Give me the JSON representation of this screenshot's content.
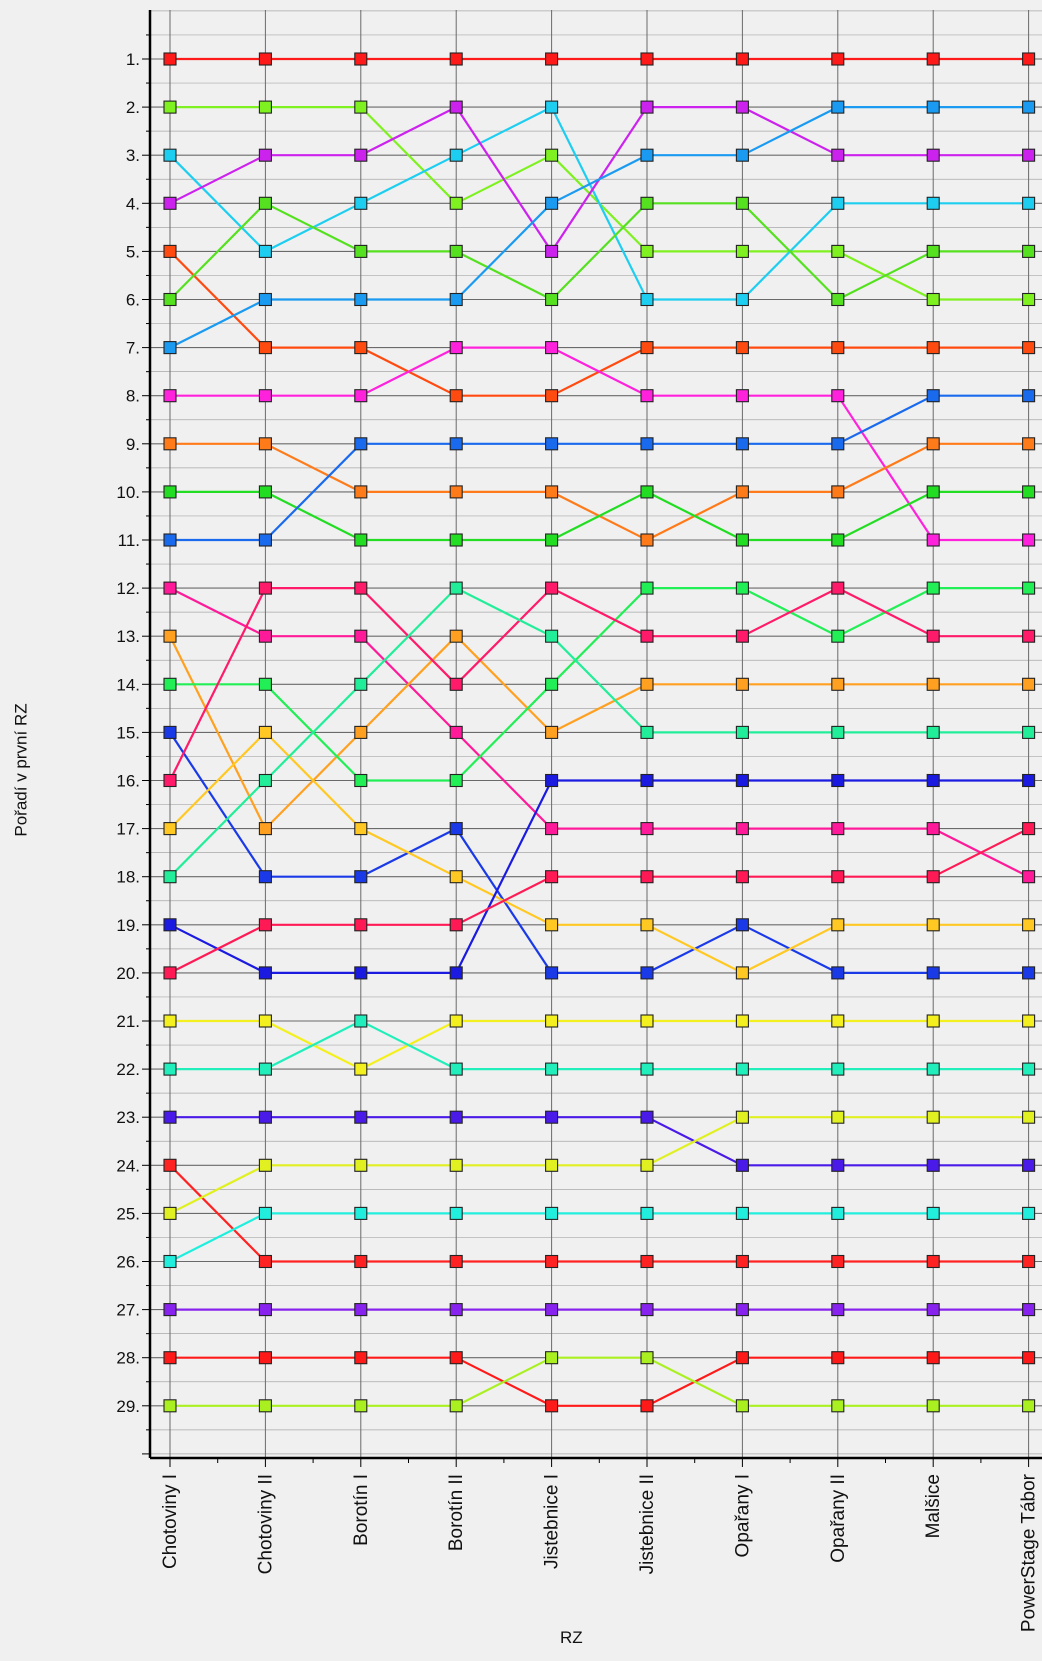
{
  "chart_data": {
    "type": "line",
    "title": "",
    "xlabel": "RZ",
    "ylabel": "Pořadí v první RZ",
    "categories": [
      "Chotoviny I",
      "Chotoviny II",
      "Borotín I",
      "Borotín II",
      "Jistebnice I",
      "Jistebnice II",
      "Opařany I",
      "Opařany II",
      "Malšice",
      "PowerStage Tábor"
    ],
    "y_tick_labels": [
      "1.",
      "2.",
      "3.",
      "4.",
      "5.",
      "6.",
      "7.",
      "8.",
      "9.",
      "10.",
      "11.",
      "12.",
      "13.",
      "14.",
      "15.",
      "16.",
      "17.",
      "18.",
      "19.",
      "20.",
      "21.",
      "22.",
      "23.",
      "24.",
      "25.",
      "26.",
      "27.",
      "28.",
      "29."
    ],
    "ylim": [
      0,
      30
    ],
    "y_inverted": true,
    "grid": true,
    "legend": "none",
    "marker": "square",
    "series": [
      {
        "color": "#ff1a1a",
        "values": [
          1,
          1,
          1,
          1,
          1,
          1,
          1,
          1,
          1,
          1
        ]
      },
      {
        "color": "#7ff020",
        "values": [
          2,
          2,
          2,
          4,
          3,
          5,
          5,
          5,
          6,
          6
        ]
      },
      {
        "color": "#1ecef0",
        "values": [
          3,
          5,
          4,
          3,
          2,
          6,
          6,
          4,
          4,
          4
        ]
      },
      {
        "color": "#cc22ee",
        "values": [
          4,
          3,
          3,
          2,
          5,
          2,
          2,
          3,
          3,
          3
        ]
      },
      {
        "color": "#ff4a10",
        "values": [
          5,
          7,
          7,
          8,
          8,
          7,
          7,
          7,
          7,
          7
        ]
      },
      {
        "color": "#55e020",
        "values": [
          6,
          4,
          5,
          5,
          6,
          4,
          4,
          6,
          5,
          5
        ]
      },
      {
        "color": "#1a9af0",
        "values": [
          7,
          6,
          6,
          6,
          4,
          3,
          3,
          2,
          2,
          2
        ]
      },
      {
        "color": "#ff22dd",
        "values": [
          8,
          8,
          8,
          7,
          7,
          8,
          8,
          8,
          11,
          11
        ]
      },
      {
        "color": "#ff7a18",
        "values": [
          9,
          9,
          10,
          10,
          10,
          11,
          10,
          10,
          9,
          9
        ]
      },
      {
        "color": "#22dd22",
        "values": [
          10,
          10,
          11,
          11,
          11,
          10,
          11,
          11,
          10,
          10
        ]
      },
      {
        "color": "#1a6aee",
        "values": [
          11,
          11,
          9,
          9,
          9,
          9,
          9,
          9,
          8,
          8
        ]
      },
      {
        "color": "#ff1a9a",
        "values": [
          12,
          13,
          13,
          15,
          17,
          17,
          17,
          17,
          17,
          18
        ]
      },
      {
        "color": "#ffa020",
        "values": [
          13,
          17,
          15,
          13,
          15,
          14,
          14,
          14,
          14,
          14
        ]
      },
      {
        "color": "#22ee55",
        "values": [
          14,
          14,
          16,
          16,
          14,
          12,
          12,
          13,
          12,
          12
        ]
      },
      {
        "color": "#1a3ae8",
        "values": [
          15,
          18,
          18,
          17,
          20,
          20,
          19,
          20,
          20,
          20
        ]
      },
      {
        "color": "#ff1a6a",
        "values": [
          16,
          12,
          12,
          14,
          12,
          13,
          13,
          12,
          13,
          13
        ]
      },
      {
        "color": "#ffc822",
        "values": [
          17,
          15,
          17,
          18,
          19,
          19,
          20,
          19,
          19,
          19
        ]
      },
      {
        "color": "#22ee99",
        "values": [
          18,
          16,
          14,
          12,
          13,
          15,
          15,
          15,
          15,
          15
        ]
      },
      {
        "color": "#1a1ae0",
        "values": [
          19,
          20,
          20,
          20,
          16,
          16,
          16,
          16,
          16,
          16
        ]
      },
      {
        "color": "#ff1a55",
        "values": [
          20,
          19,
          19,
          19,
          18,
          18,
          18,
          18,
          18,
          17
        ]
      },
      {
        "color": "#f4f020",
        "values": [
          21,
          21,
          22,
          21,
          21,
          21,
          21,
          21,
          21,
          21
        ]
      },
      {
        "color": "#22eebb",
        "values": [
          22,
          22,
          21,
          22,
          22,
          22,
          22,
          22,
          22,
          22
        ]
      },
      {
        "color": "#4a1ae8",
        "values": [
          23,
          23,
          23,
          23,
          23,
          23,
          24,
          24,
          24,
          24
        ]
      },
      {
        "color": "#ff2222",
        "values": [
          24,
          26,
          26,
          26,
          26,
          26,
          26,
          26,
          26,
          26
        ]
      },
      {
        "color": "#e0f020",
        "values": [
          25,
          24,
          24,
          24,
          24,
          24,
          23,
          23,
          23,
          23
        ]
      },
      {
        "color": "#22eedd",
        "values": [
          26,
          25,
          25,
          25,
          25,
          25,
          25,
          25,
          25,
          25
        ]
      },
      {
        "color": "#8822ee",
        "values": [
          27,
          27,
          27,
          27,
          27,
          27,
          27,
          27,
          27,
          27
        ]
      },
      {
        "color": "#ff1a1a",
        "values": [
          28,
          28,
          28,
          28,
          29,
          29,
          28,
          28,
          28,
          28
        ]
      },
      {
        "color": "#aaf020",
        "values": [
          29,
          29,
          29,
          29,
          28,
          28,
          29,
          29,
          29,
          29
        ]
      }
    ]
  }
}
